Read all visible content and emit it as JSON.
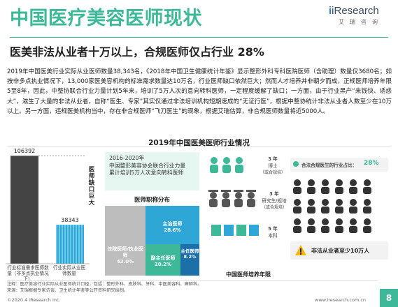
{
  "header": {
    "title": "中国医疗美容医师现状",
    "subtitle": "医美非法从业者十万以上，合规医师仅占行业 28%",
    "logo_brand": "iResearch",
    "logo_sub": "艾瑞咨询"
  },
  "body_paragraph": "2019年中国医美行业实际从业医师数量38,343名，《2018年中国卫生健康统计年鉴》显示整形外科专科医院医师（含助理）数量仅3680名；如按非多点执业情况下，13,000家医美容机构的标准需求数量达10万名，行业医师缺口依然巨大；然而人才培养并非朝夕而成，正规医师培养年限5至8年，因此，中整协联合行业力量计划5年来，培训了5万人次的意向转科医师，一定程度缓解了缺口；一方面，由于行业黑产“来钱快、诱惑大”，滋生了大量的非法从业者，自称“医生、专家”其实仅通过非法培训机构短期速成的“无证行医”，根据中整协统计非法从业者人数至少在10万以上。另一方面，违规医美机构当中，存在非合规医师“飞刀医生”的现象，根据艾瑞估算，非合规医师数量将近5000人。",
  "chart_title": "2019年中国医美医师行业情况",
  "chart_data": [
    {
      "type": "bar",
      "categories": [
        "行业标准需求医师数量（非多点执业情况下）",
        "行业实际从业医师数量"
      ],
      "values": [
        106392,
        38343
      ],
      "value_labels": [
        "106392",
        "38343"
      ],
      "ylim": [
        0,
        110000
      ],
      "annotation": "医师缺口巨大"
    },
    {
      "type": "table",
      "title": "医师职称分布",
      "items": [
        {
          "name": "住院医师/执业医师",
          "value": 43.0,
          "label": "43.0%"
        },
        {
          "name": "主治医师",
          "value": 28.6,
          "label": "28.6%"
        },
        {
          "name": "副主任医师",
          "value": 20.2,
          "label": "20.2%"
        },
        {
          "name": "主任医师",
          "value": 8.2,
          "label": "8.2%"
        }
      ]
    }
  ],
  "callout_2016": {
    "line1": "2016-2020年",
    "line2": "中国整形美容协会联合行业力量",
    "line3": "累计培训5万人次意向转科医师"
  },
  "training": {
    "title": "中国医师培养年限",
    "rows": [
      {
        "years": "3 年",
        "degree": "博士",
        "note": "（或合规培）"
      },
      {
        "years": "3 年",
        "degree": "研究生/规培",
        "note": "（或合规培）"
      },
      {
        "years": "5 年",
        "degree": "本科",
        "note": ""
      }
    ]
  },
  "right_panel": {
    "compliant_label": "合法合规医生的行业占比：",
    "compliant_value": "28%",
    "illegal_label": "非法从业者至少10万人"
  },
  "footer": {
    "note1": "注释：医疗美容行业实际从业医师统计口径，包括：整形外科、皮肤科、牙科、中医美容科、麻醉科。",
    "note2": "来源：艾瑞根据专家访谈、卫生统计年鉴等公开资料研究绘制。",
    "copyright": "©2020.4 iResearch Inc.",
    "url": "www.iresearch.com.cn",
    "page": "8"
  },
  "colors": {
    "accent": "#3db99a",
    "blue": "#2d7fc1",
    "bar_dark": "#444444",
    "light_teal": "#bde8dd",
    "grey": "#bdbdbd"
  }
}
